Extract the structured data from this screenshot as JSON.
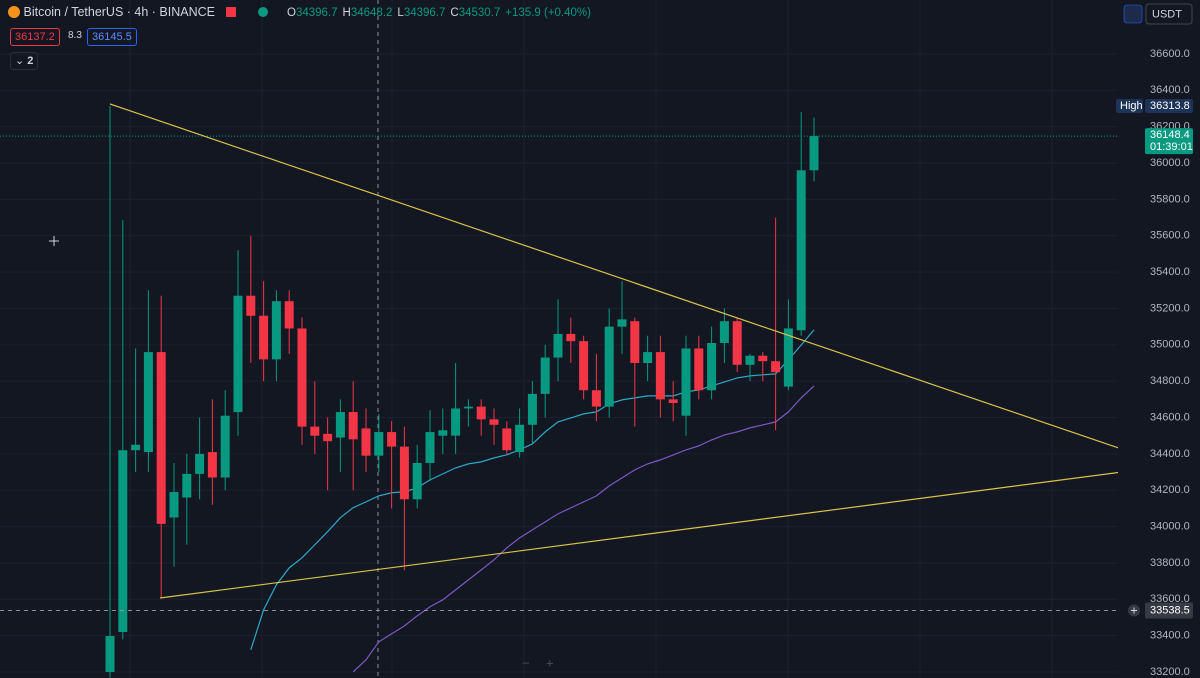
{
  "header": {
    "symbol": "Bitcoin / TetherUS · 4h · BINANCE",
    "ohlc": [
      {
        "key": "O",
        "value": 34396.7
      },
      {
        "key": "H",
        "value": 34648.2
      },
      {
        "key": "L",
        "value": 34396.7
      },
      {
        "key": "C",
        "value": 34530.7
      }
    ],
    "change": "+135.9 (+0.40%)",
    "sell_price": 36137.2,
    "spread": 8.3,
    "buy_price": 36145.5,
    "indicators_count": 2,
    "currency": "USDT"
  },
  "chart_data": {
    "type": "candlestick",
    "up_color": "#089981",
    "down_color": "#f23645",
    "open": [
      33200,
      33420,
      34420,
      34410,
      34960,
      34050,
      34160,
      34290,
      34410,
      34270,
      34630,
      35270,
      35160,
      34920,
      35240,
      35090,
      34550,
      34510,
      34490,
      34630,
      34540,
      34390,
      34520,
      34440,
      34150,
      34350,
      34500,
      34500,
      34650,
      34660,
      34590,
      34540,
      34410,
      34560,
      34730,
      34930,
      35060,
      35020,
      34750,
      34660,
      35100,
      35130,
      34900,
      34960,
      34700,
      34610,
      34980,
      34750,
      35010,
      35130,
      34890,
      34940,
      34910,
      34770,
      35080,
      35960
    ],
    "high": [
      36313.8,
      35687,
      34980,
      35300,
      35270,
      34350,
      34400,
      34600,
      34700,
      34750,
      35520,
      35600,
      35350,
      35300,
      35300,
      35150,
      34800,
      34600,
      34700,
      34800,
      34650,
      34620,
      34580,
      34550,
      34450,
      34640,
      34650,
      34900,
      34700,
      34700,
      34650,
      34580,
      34650,
      34800,
      35000,
      35250,
      35150,
      35050,
      34950,
      35200,
      35350,
      35150,
      35050,
      35050,
      34800,
      35050,
      35050,
      35100,
      35200,
      35150,
      34950,
      34960,
      35700,
      35250,
      36280,
      36250
    ],
    "low": [
      33170,
      33380,
      34300,
      34300,
      33607,
      33780,
      33900,
      34150,
      34120,
      34200,
      34500,
      34900,
      34800,
      34800,
      34950,
      34450,
      34400,
      34200,
      34300,
      34200,
      34300,
      34300,
      34100,
      33760,
      34100,
      34250,
      34400,
      34400,
      34550,
      34500,
      34450,
      34400,
      34380,
      34450,
      34600,
      34800,
      34900,
      34700,
      34580,
      34600,
      34950,
      34550,
      34800,
      34600,
      34580,
      34500,
      34700,
      34700,
      34900,
      34850,
      34800,
      34800,
      34530,
      34750,
      35050,
      35900
    ],
    "close": [
      33398,
      34420,
      34450,
      34960,
      34015,
      34190,
      34290,
      34400,
      34270,
      34610,
      35270,
      35160,
      34920,
      35240,
      35090,
      34550,
      34500,
      34470,
      34630,
      34480,
      34390,
      34520,
      34440,
      34150,
      34350,
      34520,
      34530,
      34650,
      34660,
      34590,
      34560,
      34420,
      34560,
      34730,
      34930,
      35060,
      35020,
      34750,
      34660,
      35100,
      35140,
      34900,
      34960,
      34700,
      34680,
      34980,
      34750,
      35010,
      35130,
      34890,
      34940,
      34910,
      34850,
      35090,
      35960,
      36148.4
    ],
    "lines": [
      {
        "color": "#2ea8c6",
        "values": [
          null,
          null,
          null,
          null,
          null,
          null,
          null,
          null,
          null,
          null,
          null,
          33322,
          33542,
          33680,
          33773,
          33828,
          33900,
          33972,
          34049,
          34104,
          34136,
          34169,
          34186,
          34191,
          34213,
          34257,
          34290,
          34323,
          34345,
          34356,
          34378,
          34395,
          34422,
          34455,
          34521,
          34576,
          34598,
          34620,
          34631,
          34675,
          34697,
          34708,
          34719,
          34719,
          34719,
          34741,
          34752,
          34774,
          34796,
          34818,
          34829,
          34835,
          34840,
          34917,
          34999,
          35082
        ]
      },
      {
        "color": "#7e57c2",
        "values": [
          null,
          null,
          null,
          null,
          null,
          null,
          null,
          null,
          null,
          null,
          null,
          null,
          null,
          null,
          null,
          null,
          null,
          null,
          null,
          33201,
          33267,
          33366,
          33410,
          33454,
          33509,
          33559,
          33597,
          33652,
          33707,
          33762,
          33817,
          33883,
          33938,
          33982,
          34026,
          34070,
          34103,
          34136,
          34169,
          34224,
          34268,
          34312,
          34345,
          34367,
          34394,
          34422,
          34444,
          34477,
          34504,
          34521,
          34543,
          34559,
          34576,
          34631,
          34708,
          34774
        ]
      }
    ],
    "ylim": [
      33167,
      36897
    ],
    "yticks": [
      {
        "value": 33200,
        "label": "33200.0"
      },
      {
        "value": 33400,
        "label": "33400.0"
      },
      {
        "value": 33600,
        "label": "33600.0"
      },
      {
        "value": 33800,
        "label": "33800.0"
      },
      {
        "value": 34000,
        "label": "34000.0"
      },
      {
        "value": 34200,
        "label": "34200.0"
      },
      {
        "value": 34400,
        "label": "34400.0"
      },
      {
        "value": 34600,
        "label": "34600.0"
      },
      {
        "value": 34800,
        "label": "34800.0"
      },
      {
        "value": 35000,
        "label": "35000.0"
      },
      {
        "value": 35200,
        "label": "35200.0"
      },
      {
        "value": 35400,
        "label": "35400.0"
      },
      {
        "value": 35600,
        "label": "35600.0"
      },
      {
        "value": 35800,
        "label": "35800.0"
      },
      {
        "value": 36000,
        "label": "36000.0"
      },
      {
        "value": 36200,
        "label": "36200.0"
      },
      {
        "value": 36400,
        "label": "36400.0"
      },
      {
        "value": 36600,
        "label": "36600.0"
      }
    ],
    "grid": true,
    "high_marker": {
      "label": "High",
      "value": 36313.8
    },
    "last_price": 36148.4,
    "countdown": "01:39:01",
    "crosshair_price": 33538.5
  }
}
